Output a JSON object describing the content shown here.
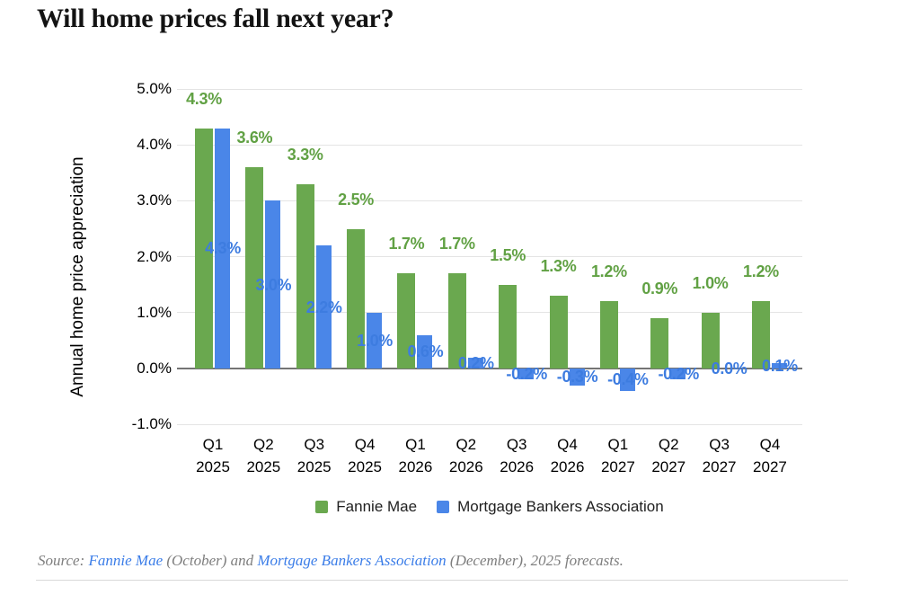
{
  "chart_data": {
    "type": "bar",
    "title": "Will home prices fall next year?",
    "ylabel": "Annual home price appreciation",
    "xlabel": "",
    "categories": [
      "Q1 2025",
      "Q2 2025",
      "Q3 2025",
      "Q4 2025",
      "Q1 2026",
      "Q2 2026",
      "Q3 2026",
      "Q4 2026",
      "Q1 2027",
      "Q2 2027",
      "Q3 2027",
      "Q4 2027"
    ],
    "series": [
      {
        "name": "Fannie Mae",
        "color": "#6aa84f",
        "label_color": "#61a144",
        "values": [
          4.3,
          3.6,
          3.3,
          2.5,
          1.7,
          1.7,
          1.5,
          1.3,
          1.2,
          0.9,
          1.0,
          1.2
        ]
      },
      {
        "name": "Mortgage Bankers Association",
        "color": "#4a86e8",
        "label_color": "#3d7ce0",
        "values": [
          4.3,
          3.0,
          2.2,
          1.0,
          0.6,
          0.2,
          -0.2,
          -0.3,
          -0.4,
          -0.2,
          0.0,
          0.1
        ]
      }
    ],
    "y_ticks": [
      5,
      4,
      3,
      2,
      1,
      0,
      -1
    ],
    "y_tick_format": "0.0%",
    "ylim": [
      -1,
      5
    ],
    "grid": true,
    "legend_position": "bottom",
    "value_labels": true
  },
  "source": {
    "prefix": "Source: ",
    "link1": "Fannie Mae",
    "mid1": " (October) and ",
    "link2": "Mortgage Bankers Association",
    "suffix": " (December), 2025 forecasts."
  },
  "colors": {
    "background": "#ffffff",
    "grid": "#e4e4e4",
    "zero_line": "#747474",
    "axis_text": "#000000",
    "source_text": "#7e7e7e",
    "link": "#3b7de8"
  }
}
